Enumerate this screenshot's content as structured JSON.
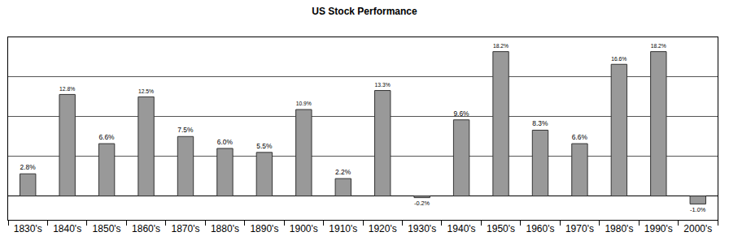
{
  "chart_data": {
    "type": "bar",
    "title": "US Stock Performance",
    "categories": [
      "1830's",
      "1840's",
      "1850's",
      "1860's",
      "1870's",
      "1880's",
      "1890's",
      "1900's",
      "1910's",
      "1920's",
      "1930's",
      "1940's",
      "1950's",
      "1960's",
      "1970's",
      "1980's",
      "1990's",
      "2000's"
    ],
    "values": [
      2.8,
      12.8,
      6.6,
      12.5,
      7.5,
      6.0,
      5.5,
      10.9,
      2.2,
      13.3,
      -0.2,
      9.6,
      18.2,
      8.3,
      6.6,
      16.6,
      18.2,
      -1.0
    ],
    "value_labels": [
      "2.8%",
      "12.8%",
      "6.6%",
      "12.5%",
      "7.5%",
      "6.0%",
      "5.5%",
      "10.9%",
      "2.2%",
      "13.3%",
      "-0.2%",
      "9.6%",
      "18.2%",
      "8.3%",
      "6.6%",
      "16.6%",
      "18.2%",
      "-1.0%"
    ],
    "color": "#999999",
    "ylim": [
      -3,
      20
    ],
    "yticks": [
      0,
      5,
      10,
      15,
      20
    ],
    "grid": true,
    "data_labels": true,
    "tick_labels": "x"
  }
}
